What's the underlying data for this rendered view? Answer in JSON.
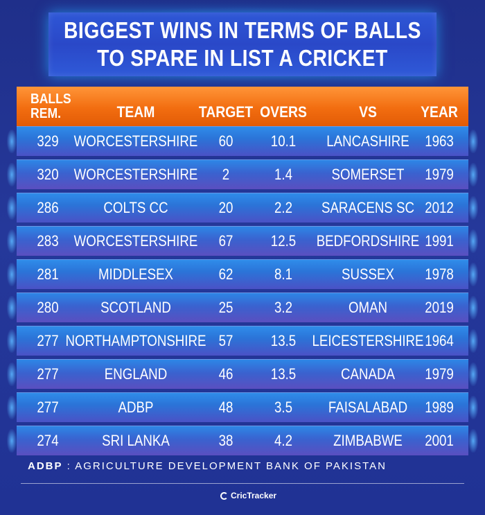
{
  "title": {
    "line1": "BIGGEST WINS IN TERMS OF BALLS",
    "line2": "TO SPARE IN LIST A CRICKET"
  },
  "chart_data": {
    "type": "table",
    "columns": {
      "balls_line1": "BALLS",
      "balls_line2": "REM.",
      "team": "TEAM",
      "target": "TARGET",
      "overs": "OVERS",
      "vs": "VS",
      "year": "YEAR"
    },
    "rows": [
      {
        "balls": "329",
        "team": "WORCESTERSHIRE",
        "target": "60",
        "overs": "10.1",
        "vs": "LANCASHIRE",
        "year": "1963"
      },
      {
        "balls": "320",
        "team": "WORCESTERSHIRE",
        "target": "2",
        "overs": "1.4",
        "vs": "SOMERSET",
        "year": "1979"
      },
      {
        "balls": "286",
        "team": "COLTS CC",
        "target": "20",
        "overs": "2.2",
        "vs": "SARACENS SC",
        "year": "2012"
      },
      {
        "balls": "283",
        "team": "WORCESTERSHIRE",
        "target": "67",
        "overs": "12.5",
        "vs": "BEDFORDSHIRE",
        "year": "1991"
      },
      {
        "balls": "281",
        "team": "MIDDLESEX",
        "target": "62",
        "overs": "8.1",
        "vs": "SUSSEX",
        "year": "1978"
      },
      {
        "balls": "280",
        "team": "SCOTLAND",
        "target": "25",
        "overs": "3.2",
        "vs": "OMAN",
        "year": "2019"
      },
      {
        "balls": "277",
        "team": "NORTHAMPTONSHIRE",
        "target": "57",
        "overs": "13.5",
        "vs": "LEICESTERSHIRE",
        "year": "1964"
      },
      {
        "balls": "277",
        "team": "ENGLAND",
        "target": "46",
        "overs": "13.5",
        "vs": "CANADA",
        "year": "1979"
      },
      {
        "balls": "277",
        "team": "ADBP",
        "target": "48",
        "overs": "3.5",
        "vs": "FAISALABAD",
        "year": "1989"
      },
      {
        "balls": "274",
        "team": "SRI LANKA",
        "target": "38",
        "overs": "4.2",
        "vs": "ZIMBABWE",
        "year": "2001"
      }
    ]
  },
  "footnote": {
    "abbr": "ADBP",
    "text": " : AGRICULTURE DEVELOPMENT BANK OF PAKISTAN"
  },
  "logo": {
    "text": "CricTracker",
    "icon": "crictracker-logo-icon"
  },
  "colors": {
    "background": "#23359a",
    "header": "#f26d10",
    "row": "#2b74d8"
  }
}
